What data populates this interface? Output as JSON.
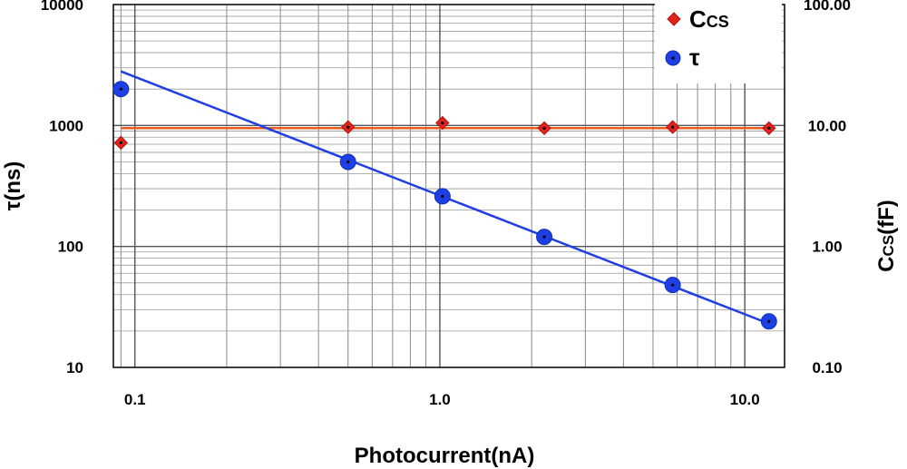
{
  "chart_data": {
    "type": "scatter",
    "x_scale": "log",
    "y_scale": "log",
    "y2_scale": "log",
    "xlabel": "Photocurrent(nA)",
    "ylabel": "τ(ns)",
    "y2label_main": "C",
    "y2label_sub": "CS",
    "y2label_unit": "(fF)",
    "xlim": [
      0.085,
      13.5
    ],
    "ylim": [
      10,
      10000
    ],
    "y2lim": [
      0.1,
      100
    ],
    "x_ticks": [
      {
        "value": 0.1,
        "label": "0.1"
      },
      {
        "value": 1,
        "label": "1.0"
      },
      {
        "value": 10,
        "label": "10.0"
      }
    ],
    "y_ticks": [
      {
        "value": 10,
        "label": "10"
      },
      {
        "value": 100,
        "label": "100"
      },
      {
        "value": 1000,
        "label": "1000"
      },
      {
        "value": 10000,
        "label": "10000"
      }
    ],
    "y2_ticks": [
      {
        "value": 0.1,
        "label": "0.10"
      },
      {
        "value": 1,
        "label": "1.00"
      },
      {
        "value": 10,
        "label": "10.00"
      },
      {
        "value": 100,
        "label": "100.00"
      }
    ],
    "grid": true,
    "legend_position": "top-right",
    "legend": [
      {
        "main": "C",
        "sub": "CS",
        "series": "ccs"
      },
      {
        "main": "τ",
        "sub": "",
        "series": "tau"
      }
    ],
    "series": [
      {
        "id": "ccs",
        "axis": "right",
        "marker": "diamond",
        "color": "#e2231a",
        "line_color": "#f05a1e",
        "x": [
          0.09,
          0.5,
          1.02,
          2.2,
          5.8,
          12.0
        ],
        "y": [
          7.2,
          9.7,
          10.5,
          9.5,
          9.7,
          9.5
        ],
        "fit": {
          "x": [
            0.09,
            12.0
          ],
          "y": [
            9.5,
            9.5
          ]
        }
      },
      {
        "id": "tau",
        "axis": "left",
        "marker": "circle",
        "color": "#1f3fe6",
        "line_color": "#1f3fe6",
        "x": [
          0.09,
          0.5,
          1.02,
          2.2,
          5.8,
          12.0
        ],
        "y": [
          2000,
          500,
          260,
          120,
          48,
          24
        ],
        "fit": {
          "x": [
            0.09,
            12.0
          ],
          "y": [
            2800,
            23
          ]
        }
      }
    ]
  }
}
